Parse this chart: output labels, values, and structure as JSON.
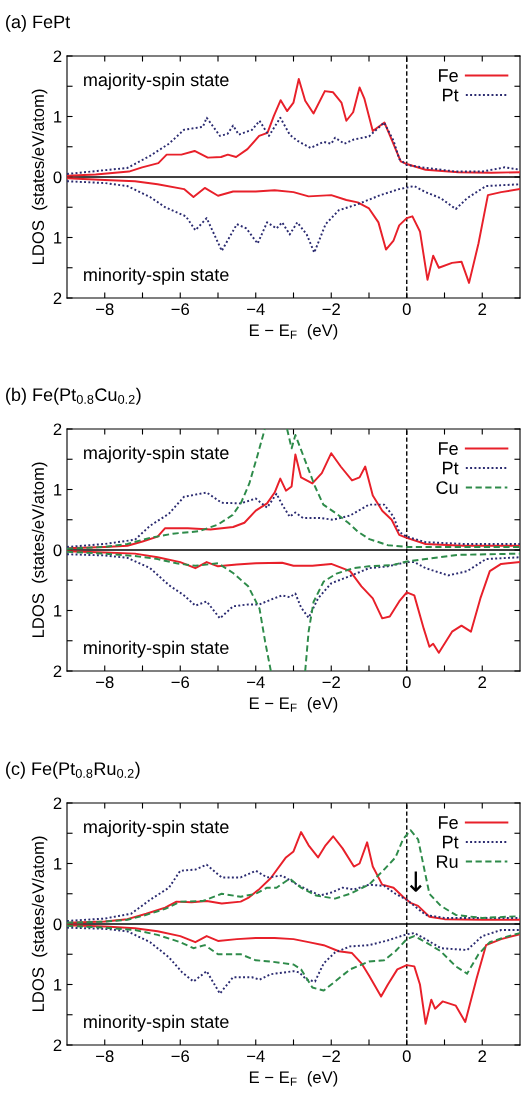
{
  "chart_data": [
    {
      "type": "line",
      "title": "(a) FePt",
      "xlabel": "E − E$_{F}$  (eV)",
      "ylabel": "LDOS  (states/eV/atom)",
      "xlim": [
        -9,
        3
      ],
      "ylim": [
        -2,
        2
      ],
      "xticks": [
        {
          "value": -8,
          "label": "−8"
        },
        {
          "value": -7,
          "label": null
        },
        {
          "value": -6,
          "label": "−6"
        },
        {
          "value": -5,
          "label": null
        },
        {
          "value": -4,
          "label": "−4"
        },
        {
          "value": -3,
          "label": null
        },
        {
          "value": -2,
          "label": "−2"
        },
        {
          "value": -1,
          "label": null
        },
        0,
        {
          "value": 1,
          "label": null
        },
        2
      ],
      "yticks": [
        {
          "value": -2,
          "label": "2"
        },
        {
          "value": -1.5,
          "label": null
        },
        {
          "value": -1,
          "label": "1"
        },
        {
          "value": -0.5,
          "label": null
        },
        0,
        {
          "value": 0.5,
          "label": null
        },
        1,
        {
          "value": 1.5,
          "label": null
        },
        2
      ],
      "legend": "top right",
      "ref_lines": [
        {
          "axis": "y",
          "value": 0,
          "color": "#000000",
          "line_style": "solid"
        },
        {
          "axis": "x",
          "value": 0,
          "color": "#000000",
          "line_style": "dashed"
        }
      ],
      "annotations": [
        "majority-spin state",
        "minority-spin state"
      ],
      "series": [
        {
          "name": "Fe",
          "color": "#e8202a",
          "line_style": "solid",
          "x": [
            -9,
            -8.24,
            -7.36,
            -7.01,
            -6.58,
            -6.36,
            -5.97,
            -5.62,
            -5.27,
            -4.92,
            -4.74,
            -4.52,
            -4.22,
            -3.91,
            -3.69,
            -3.52,
            -3.34,
            -3.17,
            -3.0,
            -2.86,
            -2.69,
            -2.47,
            -2.17,
            -1.95,
            -1.73,
            -1.6,
            -1.42,
            -1.25,
            -1.12,
            -0.9,
            -0.59,
            -0.38,
            -0.16,
            0.02,
            0.5,
            1.37,
            2.24,
            3
          ],
          "values": [
            0.02,
            0.04,
            0.09,
            0.16,
            0.23,
            0.37,
            0.37,
            0.43,
            0.32,
            0.33,
            0.37,
            0.33,
            0.46,
            0.68,
            0.73,
            1.01,
            1.27,
            1.09,
            1.23,
            1.62,
            1.26,
            1.05,
            1.42,
            1.4,
            1.23,
            0.93,
            1.07,
            1.48,
            1.29,
            0.76,
            0.9,
            0.59,
            0.26,
            0.21,
            0.12,
            0.08,
            0.07,
            0.08
          ]
        },
        {
          "name": "Pt",
          "color": "#2b2b70",
          "line_style": "dotted",
          "x": [
            -9,
            -8.2,
            -7.4,
            -6.8,
            -6.3,
            -5.9,
            -5.4,
            -5.3,
            -4.95,
            -4.75,
            -4.6,
            -4.45,
            -4.1,
            -3.9,
            -3.65,
            -3.35,
            -3.1,
            -2.9,
            -2.55,
            -2.2,
            -2.0,
            -1.9,
            -1.65,
            -1.4,
            -1.0,
            -0.6,
            -0.35,
            -0.2,
            0,
            0.5,
            1.3,
            2.0,
            2.6,
            3.0
          ],
          "values": [
            0.05,
            0.1,
            0.15,
            0.35,
            0.55,
            0.78,
            0.83,
            0.98,
            0.68,
            0.71,
            0.85,
            0.7,
            0.78,
            0.93,
            0.68,
            0.98,
            0.7,
            0.6,
            0.48,
            0.58,
            0.55,
            0.65,
            0.55,
            0.62,
            0.67,
            0.9,
            0.6,
            0.3,
            0.2,
            0.15,
            0.09,
            0.09,
            0.16,
            0.12
          ]
        },
        {
          "color": "#e8202a",
          "line_style": "solid",
          "x": [
            -9,
            -8,
            -7.2,
            -6.6,
            -5.9,
            -5.65,
            -5.35,
            -5.0,
            -4.6,
            -4.0,
            -3.5,
            -3.0,
            -2.6,
            -2.0,
            -1.6,
            -1.3,
            -1.0,
            -0.75,
            -0.55,
            -0.35,
            -0.2,
            0.0,
            0.15,
            0.35,
            0.55,
            0.7,
            0.85,
            1.2,
            1.45,
            1.65,
            1.9,
            2.15,
            2.5,
            3.0
          ],
          "values": [
            -0.02,
            -0.05,
            -0.07,
            -0.12,
            -0.2,
            -0.33,
            -0.18,
            -0.31,
            -0.24,
            -0.24,
            -0.22,
            -0.25,
            -0.32,
            -0.3,
            -0.38,
            -0.42,
            -0.52,
            -0.75,
            -1.2,
            -1.05,
            -0.8,
            -0.68,
            -0.65,
            -0.9,
            -1.7,
            -1.3,
            -1.5,
            -1.42,
            -1.4,
            -1.75,
            -1.1,
            -0.3,
            -0.25,
            -0.2
          ]
        },
        {
          "color": "#2b2b70",
          "line_style": "dotted",
          "x": [
            -9,
            -8,
            -7.4,
            -6.8,
            -6.4,
            -5.85,
            -5.6,
            -5.3,
            -4.9,
            -4.5,
            -4.25,
            -3.95,
            -3.7,
            -3.45,
            -3.3,
            -3.1,
            -2.9,
            -2.65,
            -2.45,
            -2.15,
            -1.8,
            -1.3,
            -0.7,
            -0.2,
            0.2,
            0.5,
            0.9,
            1.3,
            1.6,
            2.1,
            3.0
          ],
          "values": [
            -0.07,
            -0.1,
            -0.15,
            -0.33,
            -0.5,
            -0.65,
            -0.88,
            -0.68,
            -1.22,
            -0.78,
            -0.85,
            -1.1,
            -0.75,
            -0.85,
            -0.75,
            -0.95,
            -0.75,
            -0.95,
            -1.25,
            -0.78,
            -0.55,
            -0.45,
            -0.3,
            -0.2,
            -0.15,
            -0.25,
            -0.35,
            -0.53,
            -0.35,
            -0.15,
            -0.12
          ]
        }
      ]
    },
    {
      "type": "line",
      "title": "(b) Fe(Pt$_{0.8}$Cu$_{0.2}$)",
      "xlabel": "E − E$_{F}$  (eV)",
      "ylabel": "LDOS  (states/eV/atom)",
      "xlim": [
        -9,
        3
      ],
      "ylim": [
        -2,
        2
      ],
      "xticks": [
        {
          "value": -8,
          "label": "−8"
        },
        {
          "value": -7,
          "label": null
        },
        {
          "value": -6,
          "label": "−6"
        },
        {
          "value": -5,
          "label": null
        },
        {
          "value": -4,
          "label": "−4"
        },
        {
          "value": -3,
          "label": null
        },
        {
          "value": -2,
          "label": "−2"
        },
        {
          "value": -1,
          "label": null
        },
        0,
        {
          "value": 1,
          "label": null
        },
        2
      ],
      "yticks": [
        {
          "value": -2,
          "label": "2"
        },
        {
          "value": -1.5,
          "label": null
        },
        {
          "value": -1,
          "label": "1"
        },
        {
          "value": -0.5,
          "label": null
        },
        0,
        {
          "value": 0.5,
          "label": null
        },
        1,
        {
          "value": 1.5,
          "label": null
        },
        2
      ],
      "legend": "top right",
      "ref_lines": [
        {
          "axis": "y",
          "value": 0,
          "color": "#000000",
          "line_style": "solid"
        },
        {
          "axis": "x",
          "value": 0,
          "color": "#000000",
          "line_style": "dashed"
        }
      ],
      "annotations": [
        "majority-spin state",
        "minority-spin state"
      ],
      "series": [
        {
          "name": "Fe",
          "color": "#e8202a",
          "line_style": "solid",
          "x": [
            -9,
            -8,
            -7.4,
            -7.0,
            -6.6,
            -6.4,
            -5.8,
            -5.2,
            -4.6,
            -4.3,
            -4.0,
            -3.7,
            -3.5,
            -3.35,
            -3.2,
            -3.05,
            -2.95,
            -2.8,
            -2.5,
            -2.25,
            -2.0,
            -1.75,
            -1.45,
            -1.25,
            -1.1,
            -0.9,
            -0.65,
            -0.4,
            -0.2,
            0.0,
            0.5,
            1.5,
            3.0
          ],
          "values": [
            0.03,
            0.05,
            0.07,
            0.14,
            0.22,
            0.36,
            0.36,
            0.34,
            0.38,
            0.45,
            0.65,
            0.77,
            0.95,
            1.18,
            0.98,
            1.05,
            1.58,
            1.2,
            1.1,
            1.27,
            1.6,
            1.38,
            1.15,
            1.2,
            1.38,
            0.9,
            0.65,
            0.5,
            0.25,
            0.2,
            0.1,
            0.07,
            0.07
          ]
        },
        {
          "name": "Pt",
          "color": "#2b2b70",
          "line_style": "dotted",
          "x": [
            -9,
            -8,
            -7.2,
            -6.8,
            -6.3,
            -5.9,
            -5.3,
            -4.9,
            -4.4,
            -4.0,
            -3.7,
            -3.45,
            -3.3,
            -3.1,
            -2.95,
            -2.75,
            -2.3,
            -1.95,
            -1.5,
            -1.0,
            -0.6,
            -0.35,
            -0.2,
            0.0,
            0.5,
            1.5,
            3.0
          ],
          "values": [
            0.05,
            0.1,
            0.17,
            0.4,
            0.6,
            0.88,
            0.95,
            0.78,
            0.77,
            0.85,
            0.7,
            0.93,
            0.75,
            0.55,
            0.62,
            0.53,
            0.53,
            0.5,
            0.57,
            0.75,
            0.75,
            0.55,
            0.3,
            0.22,
            0.13,
            0.1,
            0.1
          ]
        },
        {
          "name": "Cu",
          "color": "#2e8b4a",
          "line_style": "dashed",
          "x": [
            -9,
            -8,
            -7.4,
            -6.8,
            -6.2,
            -5.5,
            -5.0,
            -4.61,
            -4.39,
            -4.17,
            -3.96,
            -3.76,
            -3.45,
            -3.17,
            -3.05,
            -2.95,
            -2.65,
            -2.43,
            -2.21,
            -1.86,
            -1.55,
            -1.29,
            -0.99,
            -0.5,
            0,
            1,
            3
          ],
          "values": [
            0.02,
            0.05,
            0.1,
            0.2,
            0.27,
            0.31,
            0.42,
            0.58,
            0.78,
            1.1,
            1.55,
            2.0,
            null,
            2.0,
            1.68,
            1.9,
            1.41,
            1.05,
            0.75,
            0.6,
            0.45,
            0.3,
            0.18,
            0.08,
            0.05,
            0.05,
            0.05
          ]
        },
        {
          "color": "#e8202a",
          "line_style": "solid",
          "x": [
            -9,
            -8,
            -7.2,
            -6.6,
            -6.0,
            -5.6,
            -5.3,
            -5.0,
            -4.5,
            -4.0,
            -3.3,
            -3.0,
            -2.5,
            -2.0,
            -1.5,
            -1.2,
            -0.9,
            -0.65,
            -0.45,
            -0.2,
            0.0,
            0.2,
            0.45,
            0.6,
            0.7,
            0.85,
            1.2,
            1.45,
            1.7,
            1.95,
            2.2,
            2.5,
            3.0
          ],
          "values": [
            -0.02,
            -0.04,
            -0.06,
            -0.12,
            -0.2,
            -0.3,
            -0.2,
            -0.27,
            -0.24,
            -0.22,
            -0.21,
            -0.26,
            -0.26,
            -0.23,
            -0.35,
            -0.6,
            -0.8,
            -1.13,
            -1.1,
            -0.85,
            -0.7,
            -0.75,
            -1.3,
            -1.6,
            -1.55,
            -1.7,
            -1.35,
            -1.25,
            -1.35,
            -0.8,
            -0.35,
            -0.23,
            -0.2
          ]
        },
        {
          "color": "#2b2b70",
          "line_style": "dotted",
          "x": [
            -9,
            -8,
            -7.4,
            -6.8,
            -6.3,
            -5.9,
            -5.6,
            -5.3,
            -4.95,
            -4.6,
            -4.2,
            -3.9,
            -3.6,
            -3.3,
            -3.1,
            -2.95,
            -2.8,
            -2.6,
            -2.35,
            -2.0,
            -1.5,
            -1.0,
            -0.5,
            0.0,
            0.2,
            0.5,
            1.1,
            1.6,
            2.1,
            3.0
          ],
          "values": [
            -0.07,
            -0.09,
            -0.13,
            -0.3,
            -0.58,
            -0.75,
            -0.92,
            -0.85,
            -1.13,
            -0.93,
            -0.9,
            -0.9,
            -0.82,
            -0.75,
            -0.78,
            -0.72,
            -0.95,
            -1.12,
            -0.8,
            -0.55,
            -0.43,
            -0.3,
            -0.27,
            -0.2,
            -0.2,
            -0.3,
            -0.42,
            -0.35,
            -0.15,
            -0.12
          ]
        },
        {
          "color": "#2e8b4a",
          "line_style": "dashed",
          "x": [
            -9,
            -8,
            -7.2,
            -6.6,
            -6.1,
            -5.6,
            -5.0,
            -4.6,
            -4.2,
            -3.9,
            -3.75,
            -3.6,
            -3.2,
            -2.69,
            -2.6,
            -2.47,
            -2.2,
            -1.86,
            -1.42,
            -1.0,
            -0.38,
            0,
            0.5,
            1.37,
            3.0
          ],
          "values": [
            -0.03,
            -0.06,
            -0.1,
            -0.15,
            -0.22,
            -0.26,
            -0.22,
            -0.38,
            -0.6,
            -0.97,
            -1.52,
            -2.0,
            null,
            -2.0,
            -1.35,
            -0.86,
            -0.52,
            -0.39,
            -0.3,
            -0.27,
            -0.25,
            -0.19,
            -0.15,
            -0.08,
            -0.06
          ]
        }
      ]
    },
    {
      "type": "line",
      "title": "(c) Fe(Pt$_{0.8}$Ru$_{0.2}$)",
      "xlabel": "E − E$_{F}$  (eV)",
      "ylabel": "LDOS  (states/eV/atom)",
      "xlim": [
        -9,
        3
      ],
      "ylim": [
        -2,
        2
      ],
      "xticks": [
        {
          "value": -8,
          "label": "−8"
        },
        {
          "value": -7,
          "label": null
        },
        {
          "value": -6,
          "label": "−6"
        },
        {
          "value": -5,
          "label": null
        },
        {
          "value": -4,
          "label": "−4"
        },
        {
          "value": -3,
          "label": null
        },
        {
          "value": -2,
          "label": "−2"
        },
        {
          "value": -1,
          "label": null
        },
        0,
        {
          "value": 1,
          "label": null
        },
        2
      ],
      "yticks": [
        {
          "value": -2,
          "label": "2"
        },
        {
          "value": -1.5,
          "label": null
        },
        {
          "value": -1,
          "label": "1"
        },
        {
          "value": -0.5,
          "label": null
        },
        0,
        {
          "value": 0.5,
          "label": null
        },
        1,
        {
          "value": 1.5,
          "label": null
        },
        2
      ],
      "legend": "top right",
      "ref_lines": [
        {
          "axis": "y",
          "value": 0,
          "color": "#000000",
          "line_style": "solid"
        },
        {
          "axis": "x",
          "value": 0,
          "color": "#000000",
          "line_style": "dashed"
        }
      ],
      "annotations": [
        "majority-spin state",
        "minority-spin state",
        "↓"
      ],
      "series": [
        {
          "name": "Fe",
          "color": "#e8202a",
          "line_style": "solid",
          "x": [
            -9,
            -8,
            -7.4,
            -6.9,
            -6.4,
            -6.1,
            -5.7,
            -5.3,
            -4.9,
            -4.4,
            -4.2,
            -3.9,
            -3.6,
            -3.2,
            -3.0,
            -2.8,
            -2.6,
            -2.35,
            -2.15,
            -1.95,
            -1.7,
            -1.4,
            -1.25,
            -1.05,
            -0.9,
            -0.65,
            -0.35,
            -0.1,
            0.1,
            0.3,
            0.6,
            1.0,
            2.0,
            3.0
          ],
          "values": [
            0.02,
            0.04,
            0.08,
            0.17,
            0.27,
            0.37,
            0.36,
            0.38,
            0.34,
            0.37,
            0.43,
            0.58,
            0.76,
            1.1,
            1.2,
            1.52,
            1.3,
            1.1,
            1.3,
            1.45,
            1.25,
            0.95,
            1.0,
            1.35,
            0.95,
            0.65,
            0.6,
            0.45,
            0.35,
            0.3,
            0.12,
            0.08,
            0.07,
            0.07
          ]
        },
        {
          "name": "Pt",
          "color": "#2b2b70",
          "line_style": "dotted",
          "x": [
            -9,
            -8,
            -7.3,
            -6.8,
            -6.3,
            -6.0,
            -5.6,
            -5.3,
            -4.9,
            -4.4,
            -4.0,
            -3.7,
            -3.3,
            -2.9,
            -2.3,
            -2.0,
            -1.7,
            -1.4,
            -1.0,
            -0.6,
            -0.3,
            0,
            0.2,
            0.5,
            1.0,
            2.0,
            3.0
          ],
          "values": [
            0.05,
            0.09,
            0.17,
            0.4,
            0.6,
            0.88,
            0.9,
            0.98,
            0.77,
            0.77,
            0.88,
            0.77,
            0.8,
            0.65,
            0.47,
            0.52,
            0.6,
            0.57,
            0.65,
            0.63,
            0.5,
            0.4,
            0.3,
            0.15,
            0.1,
            0.1,
            0.1
          ]
        },
        {
          "name": "Ru",
          "color": "#2e8b4a",
          "line_style": "dashed",
          "x": [
            -9,
            -8,
            -7.4,
            -6.9,
            -6.4,
            -6.0,
            -5.4,
            -4.9,
            -4.4,
            -4.0,
            -3.7,
            -3.45,
            -3.1,
            -2.8,
            -2.4,
            -1.9,
            -1.5,
            -1.0,
            -0.6,
            -0.3,
            -0.1,
            0.1,
            0.3,
            0.45,
            0.6,
            0.9,
            1.3,
            2.0,
            3.0
          ],
          "values": [
            0.02,
            0.04,
            0.07,
            0.15,
            0.25,
            0.37,
            0.38,
            0.5,
            0.45,
            0.5,
            0.6,
            0.6,
            0.75,
            0.6,
            0.47,
            0.42,
            0.5,
            0.65,
            0.9,
            1.1,
            1.4,
            1.55,
            1.4,
            0.95,
            0.5,
            0.3,
            0.15,
            0.1,
            0.13
          ]
        },
        {
          "color": "#e8202a",
          "line_style": "solid",
          "x": [
            -9,
            -8,
            -7.2,
            -6.6,
            -6.0,
            -5.6,
            -5.3,
            -5.0,
            -4.5,
            -4.0,
            -3.5,
            -3.0,
            -2.6,
            -2.2,
            -1.8,
            -1.45,
            -1.2,
            -1.0,
            -0.68,
            -0.5,
            -0.25,
            0.0,
            0.2,
            0.35,
            0.5,
            0.65,
            0.75,
            0.95,
            1.3,
            1.55,
            1.85,
            2.1,
            2.5,
            3.0
          ],
          "values": [
            -0.02,
            -0.04,
            -0.07,
            -0.12,
            -0.2,
            -0.3,
            -0.2,
            -0.28,
            -0.25,
            -0.23,
            -0.23,
            -0.25,
            -0.3,
            -0.35,
            -0.45,
            -0.48,
            -0.65,
            -0.85,
            -1.2,
            -1.0,
            -0.75,
            -0.68,
            -0.7,
            -1.0,
            -1.65,
            -1.25,
            -1.4,
            -1.28,
            -1.35,
            -1.62,
            -0.9,
            -0.35,
            -0.25,
            -0.17
          ]
        },
        {
          "color": "#2b2b70",
          "line_style": "dotted",
          "x": [
            -9,
            -8,
            -7.4,
            -6.8,
            -6.3,
            -5.95,
            -5.65,
            -5.3,
            -4.95,
            -4.6,
            -4.1,
            -3.9,
            -3.6,
            -3.0,
            -2.85,
            -2.65,
            -2.43,
            -2.2,
            -1.9,
            -1.5,
            -1.0,
            -0.5,
            0.0,
            0.2,
            0.5,
            0.9,
            1.6,
            2.0,
            2.5,
            3.0
          ],
          "values": [
            -0.06,
            -0.08,
            -0.12,
            -0.3,
            -0.55,
            -0.8,
            -0.95,
            -0.78,
            -1.15,
            -0.88,
            -0.88,
            -0.92,
            -0.83,
            -0.78,
            -0.8,
            -0.92,
            -0.95,
            -0.65,
            -0.47,
            -0.37,
            -0.35,
            -0.27,
            -0.17,
            -0.15,
            -0.25,
            -0.4,
            -0.43,
            -0.2,
            -0.1,
            -0.1
          ]
        },
        {
          "color": "#2e8b4a",
          "line_style": "dashed",
          "x": [
            -9,
            -8,
            -7.2,
            -6.6,
            -6.0,
            -5.65,
            -5.35,
            -5.0,
            -4.6,
            -4.4,
            -4.0,
            -3.6,
            -3.0,
            -2.8,
            -2.5,
            -2.2,
            -1.9,
            -1.5,
            -1.0,
            -0.6,
            -0.3,
            0.0,
            0.2,
            0.5,
            0.9,
            1.3,
            1.6,
            1.9,
            2.2,
            2.7,
            3.0
          ],
          "values": [
            -0.03,
            -0.06,
            -0.1,
            -0.18,
            -0.3,
            -0.4,
            -0.35,
            -0.5,
            -0.5,
            -0.5,
            -0.6,
            -0.62,
            -0.67,
            -0.75,
            -1.05,
            -1.1,
            -0.95,
            -0.75,
            -0.62,
            -0.6,
            -0.45,
            -0.25,
            -0.2,
            -0.3,
            -0.45,
            -0.7,
            -0.82,
            -0.5,
            -0.3,
            -0.2,
            -0.15
          ]
        }
      ]
    }
  ]
}
